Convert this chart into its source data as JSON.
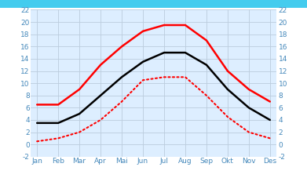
{
  "months": [
    "Jan",
    "Feb",
    "Mar",
    "Apr",
    "Mai",
    "Jun",
    "Jul",
    "Aug",
    "Sep",
    "Okt",
    "Nov",
    "Des"
  ],
  "red_solid": [
    6.5,
    6.5,
    9.0,
    13.0,
    16.0,
    18.5,
    19.5,
    19.5,
    17.0,
    12.0,
    9.0,
    7.0
  ],
  "black_solid": [
    3.5,
    3.5,
    5.0,
    8.0,
    11.0,
    13.5,
    15.0,
    15.0,
    13.0,
    9.0,
    6.0,
    4.0
  ],
  "red_dotted": [
    0.5,
    1.0,
    2.0,
    4.0,
    7.0,
    10.5,
    11.0,
    11.0,
    8.0,
    4.5,
    2.0,
    1.0
  ],
  "red_solid_color": "#ff0000",
  "black_solid_color": "#000000",
  "red_dotted_color": "#ff0000",
  "ylim": [
    -2,
    22
  ],
  "yticks": [
    -2,
    0,
    2,
    4,
    6,
    8,
    10,
    12,
    14,
    16,
    18,
    20,
    22
  ],
  "bg_color": "#ffffff",
  "plot_bg_color": "#ddeeff",
  "top_bar_color": "#44ccee",
  "grid_color": "#bbccdd",
  "tick_label_color": "#4488bb",
  "linewidth_solid": 1.8,
  "linewidth_dotted": 1.5
}
